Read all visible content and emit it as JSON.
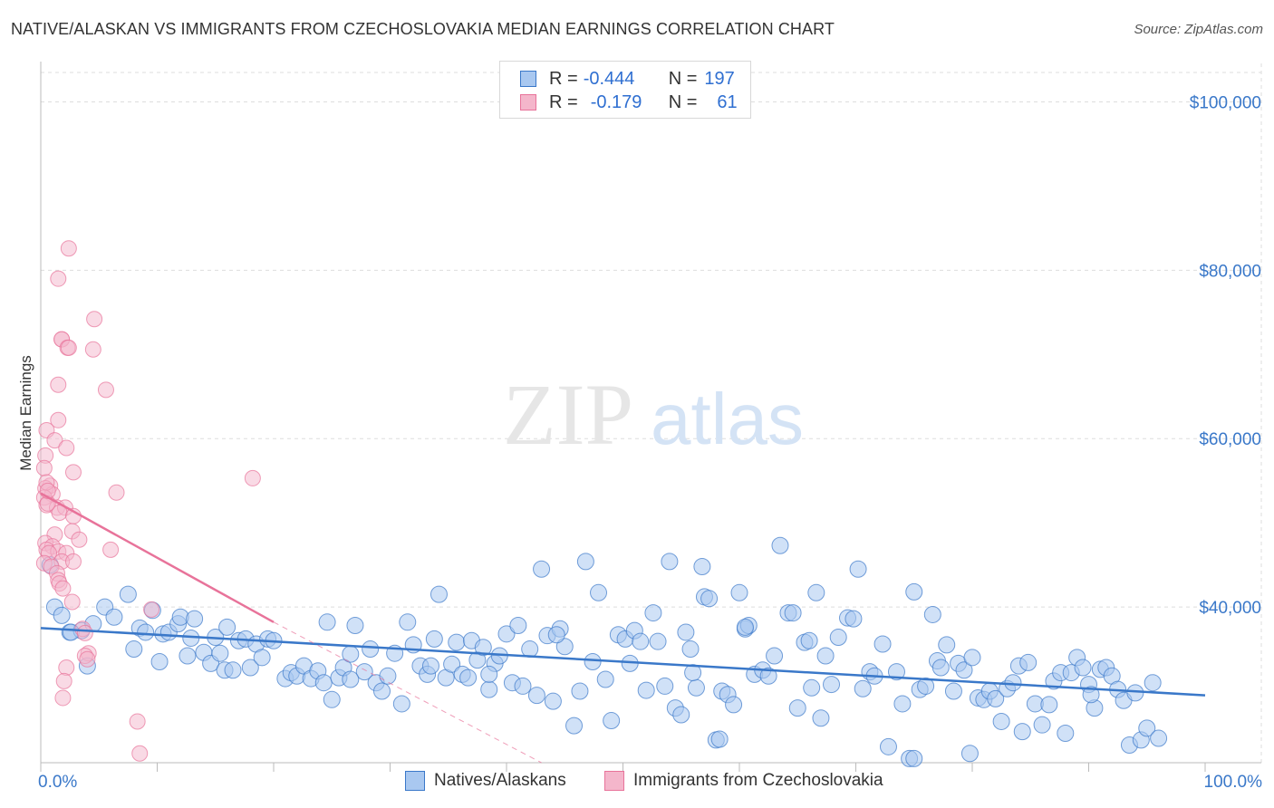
{
  "title": "NATIVE/ALASKAN VS IMMIGRANTS FROM CZECHOSLOVAKIA MEDIAN EARNINGS CORRELATION CHART",
  "source": "Source: ZipAtlas.com",
  "watermark": {
    "zip": "ZIP",
    "atlas": "atlas"
  },
  "colors": {
    "blue": "#3a78c9",
    "blue_fill": "#a9c8f0",
    "pink": "#e8739a",
    "pink_fill": "#f4b6cb",
    "grid": "#dddddd"
  },
  "legend": {
    "rows": [
      {
        "r_label": "R =",
        "r_value": "-0.444",
        "n_label": "N =",
        "n_value": "197"
      },
      {
        "r_label": "R =",
        "r_value": "-0.179",
        "n_label": "N =",
        "n_value": "61"
      }
    ]
  },
  "bottom_legend": {
    "series1": "Natives/Alaskans",
    "series2": "Immigrants from Czechoslovakia"
  },
  "chart_data": {
    "type": "scatter",
    "ylabel": "Median Earnings",
    "xlim": [
      0,
      100
    ],
    "ylim": [
      21500,
      103500
    ],
    "x_tick_labels": [
      "0.0%",
      "100.0%"
    ],
    "y_ticks": [
      {
        "value": 40000,
        "label": "$40,000"
      },
      {
        "value": 60000,
        "label": "$60,000"
      },
      {
        "value": 80000,
        "label": "$80,000"
      },
      {
        "value": 100000,
        "label": "$100,000"
      }
    ],
    "grid": true,
    "legend_position": "top-center",
    "series": [
      {
        "name": "Natives/Alaskans",
        "trend": {
          "x0": 0,
          "y0": 37500,
          "x1": 100,
          "y1": 29500
        },
        "points": [
          [
            0.8,
            45000
          ],
          [
            1.2,
            40000
          ],
          [
            1.8,
            39000
          ],
          [
            2.5,
            37000
          ],
          [
            3.5,
            37200
          ],
          [
            4.5,
            38000
          ],
          [
            5.5,
            40000
          ],
          [
            6.3,
            38800
          ],
          [
            7.5,
            41500
          ],
          [
            8,
            35000
          ],
          [
            8.5,
            37500
          ],
          [
            9,
            37000
          ],
          [
            9.6,
            39600
          ],
          [
            10.2,
            33500
          ],
          [
            10.5,
            36800
          ],
          [
            11,
            37000
          ],
          [
            11.8,
            38000
          ],
          [
            12,
            38800
          ],
          [
            12.6,
            34200
          ],
          [
            12.9,
            36300
          ],
          [
            13.2,
            38600
          ],
          [
            14,
            34600
          ],
          [
            14.6,
            33300
          ],
          [
            15,
            36400
          ],
          [
            15.4,
            34500
          ],
          [
            15.8,
            32500
          ],
          [
            16.5,
            32500
          ],
          [
            17,
            36000
          ],
          [
            17.6,
            36200
          ],
          [
            18,
            32800
          ],
          [
            18.5,
            35600
          ],
          [
            19,
            34000
          ],
          [
            19.5,
            36200
          ],
          [
            20,
            36000
          ],
          [
            21,
            31500
          ],
          [
            21.5,
            32200
          ],
          [
            22,
            31800
          ],
          [
            22.6,
            33000
          ],
          [
            23.2,
            31500
          ],
          [
            23.8,
            32400
          ],
          [
            24.3,
            31000
          ],
          [
            24.6,
            38200
          ],
          [
            25,
            29000
          ],
          [
            25.6,
            31600
          ],
          [
            26,
            32800
          ],
          [
            26.6,
            34400
          ],
          [
            27,
            37800
          ],
          [
            27.8,
            32300
          ],
          [
            28.3,
            35000
          ],
          [
            28.8,
            31000
          ],
          [
            29.3,
            30000
          ],
          [
            29.8,
            31800
          ],
          [
            30.4,
            34500
          ],
          [
            31,
            28500
          ],
          [
            31.5,
            38200
          ],
          [
            32,
            35500
          ],
          [
            32.6,
            33000
          ],
          [
            33.2,
            32000
          ],
          [
            33.8,
            36200
          ],
          [
            34.2,
            41500
          ],
          [
            34.8,
            31600
          ],
          [
            35.3,
            33200
          ],
          [
            35.7,
            35800
          ],
          [
            36.2,
            32000
          ],
          [
            36.7,
            31600
          ],
          [
            37,
            36000
          ],
          [
            37.5,
            33700
          ],
          [
            38,
            35200
          ],
          [
            38.5,
            30200
          ],
          [
            39,
            33300
          ],
          [
            39.4,
            34200
          ],
          [
            40,
            36800
          ],
          [
            40.5,
            31000
          ],
          [
            41,
            37800
          ],
          [
            41.4,
            30600
          ],
          [
            42,
            35000
          ],
          [
            42.6,
            29500
          ],
          [
            43,
            44500
          ],
          [
            43.5,
            36600
          ],
          [
            44,
            28800
          ],
          [
            44.6,
            37400
          ],
          [
            45,
            35300
          ],
          [
            45.8,
            25900
          ],
          [
            46.3,
            30000
          ],
          [
            46.8,
            45400
          ],
          [
            47.4,
            33500
          ],
          [
            47.9,
            41700
          ],
          [
            48.5,
            31400
          ],
          [
            49,
            26500
          ],
          [
            49.6,
            36700
          ],
          [
            50.2,
            36200
          ],
          [
            50.6,
            33300
          ],
          [
            51,
            37200
          ],
          [
            51.5,
            35900
          ],
          [
            52,
            30100
          ],
          [
            52.6,
            39300
          ],
          [
            53,
            35900
          ],
          [
            53.6,
            30600
          ],
          [
            54,
            45400
          ],
          [
            54.5,
            28000
          ],
          [
            55,
            27200
          ],
          [
            55.4,
            37000
          ],
          [
            55.8,
            35000
          ],
          [
            56.3,
            30400
          ],
          [
            56.8,
            44800
          ],
          [
            57,
            41200
          ],
          [
            57.4,
            41000
          ],
          [
            58,
            24200
          ],
          [
            58.5,
            30000
          ],
          [
            59,
            29600
          ],
          [
            59.5,
            28400
          ],
          [
            60,
            41700
          ],
          [
            60.5,
            37400
          ],
          [
            60.8,
            37800
          ],
          [
            61.3,
            32000
          ],
          [
            62,
            32500
          ],
          [
            62.5,
            31800
          ],
          [
            63,
            34200
          ],
          [
            63.5,
            47300
          ],
          [
            64.2,
            39300
          ],
          [
            64.6,
            39300
          ],
          [
            65,
            28000
          ],
          [
            65.6,
            35800
          ],
          [
            66,
            36000
          ],
          [
            66.6,
            41700
          ],
          [
            67,
            26800
          ],
          [
            67.4,
            34200
          ],
          [
            67.9,
            30800
          ],
          [
            68.5,
            36400
          ],
          [
            69.3,
            38700
          ],
          [
            69.8,
            38600
          ],
          [
            70.2,
            44500
          ],
          [
            70.6,
            30300
          ],
          [
            71.2,
            32300
          ],
          [
            71.6,
            31800
          ],
          [
            72.3,
            35600
          ],
          [
            72.8,
            23400
          ],
          [
            73.5,
            32300
          ],
          [
            74,
            28500
          ],
          [
            74.6,
            22000
          ],
          [
            75,
            22000
          ],
          [
            75.5,
            30200
          ],
          [
            76,
            30600
          ],
          [
            76.6,
            39100
          ],
          [
            77,
            33600
          ],
          [
            77.3,
            32800
          ],
          [
            77.8,
            35500
          ],
          [
            78.4,
            30000
          ],
          [
            78.8,
            33300
          ],
          [
            79.3,
            32500
          ],
          [
            79.8,
            22600
          ],
          [
            80,
            34000
          ],
          [
            80.5,
            29200
          ],
          [
            81,
            29000
          ],
          [
            81.5,
            30000
          ],
          [
            82,
            29100
          ],
          [
            82.5,
            26400
          ],
          [
            83,
            30300
          ],
          [
            83.5,
            31000
          ],
          [
            84,
            33000
          ],
          [
            84.3,
            25200
          ],
          [
            84.8,
            33400
          ],
          [
            85.4,
            28500
          ],
          [
            86,
            26000
          ],
          [
            86.6,
            28400
          ],
          [
            87,
            31200
          ],
          [
            87.6,
            32200
          ],
          [
            88,
            25000
          ],
          [
            88.5,
            32200
          ],
          [
            89,
            34000
          ],
          [
            89.5,
            32800
          ],
          [
            90,
            30800
          ],
          [
            90.5,
            28000
          ],
          [
            91,
            32600
          ],
          [
            91.5,
            32800
          ],
          [
            92,
            31800
          ],
          [
            92.5,
            30200
          ],
          [
            93,
            28900
          ],
          [
            93.5,
            23600
          ],
          [
            94,
            29800
          ],
          [
            94.5,
            24200
          ],
          [
            95,
            25600
          ],
          [
            95.5,
            31000
          ],
          [
            96,
            24400
          ],
          [
            60.5,
            37600
          ],
          [
            38.5,
            32000
          ],
          [
            44.3,
            36700
          ],
          [
            26.6,
            31400
          ],
          [
            16,
            37600
          ],
          [
            4,
            33000
          ],
          [
            2.6,
            37000
          ],
          [
            33.5,
            33000
          ],
          [
            56,
            32200
          ],
          [
            66.2,
            30400
          ],
          [
            90.2,
            29600
          ],
          [
            58.3,
            24300
          ],
          [
            75,
            41800
          ]
        ]
      },
      {
        "name": "Immigrants from Czechoslovakia",
        "trend": {
          "x0": 0,
          "y0": 53500,
          "x1": 20,
          "y1": 38200
        },
        "trend_dashed": {
          "x0": 20,
          "y0": 38200,
          "x1": 43,
          "y1": 21500
        },
        "points": [
          [
            2.4,
            82600
          ],
          [
            1.5,
            79000
          ],
          [
            4.6,
            74200
          ],
          [
            1.8,
            71800
          ],
          [
            1.8,
            71800
          ],
          [
            2.3,
            70800
          ],
          [
            2.4,
            70800
          ],
          [
            4.5,
            70600
          ],
          [
            1.5,
            66400
          ],
          [
            5.6,
            65800
          ],
          [
            1.5,
            62200
          ],
          [
            0.5,
            61000
          ],
          [
            1.2,
            59800
          ],
          [
            2.2,
            58900
          ],
          [
            0.4,
            58000
          ],
          [
            0.3,
            56500
          ],
          [
            2.8,
            56000
          ],
          [
            0.8,
            54400
          ],
          [
            0.4,
            54100
          ],
          [
            6.5,
            53600
          ],
          [
            1.0,
            53400
          ],
          [
            0.3,
            53000
          ],
          [
            0.5,
            52100
          ],
          [
            1.4,
            51800
          ],
          [
            2.1,
            51800
          ],
          [
            1.6,
            51200
          ],
          [
            2.8,
            50800
          ],
          [
            0.6,
            52300
          ],
          [
            2.7,
            49000
          ],
          [
            1.2,
            48600
          ],
          [
            3.3,
            48000
          ],
          [
            0.4,
            47600
          ],
          [
            1.0,
            47200
          ],
          [
            6.0,
            46800
          ],
          [
            0.5,
            46800
          ],
          [
            1.5,
            46600
          ],
          [
            0.7,
            46400
          ],
          [
            2.2,
            46400
          ],
          [
            1.8,
            45400
          ],
          [
            2.8,
            45400
          ],
          [
            0.3,
            45200
          ],
          [
            0.9,
            44800
          ],
          [
            1.4,
            44000
          ],
          [
            1.5,
            43200
          ],
          [
            1.6,
            42800
          ],
          [
            1.9,
            42200
          ],
          [
            2.7,
            40600
          ],
          [
            9.5,
            39700
          ],
          [
            3.6,
            37400
          ],
          [
            3.8,
            36900
          ],
          [
            4.1,
            34500
          ],
          [
            3.8,
            34200
          ],
          [
            4.0,
            33800
          ],
          [
            2.2,
            32800
          ],
          [
            2.0,
            31200
          ],
          [
            1.9,
            29200
          ],
          [
            8.3,
            26400
          ],
          [
            8.5,
            22600
          ],
          [
            18.2,
            55300
          ],
          [
            0.5,
            54800
          ],
          [
            0.6,
            53800
          ]
        ]
      }
    ]
  }
}
